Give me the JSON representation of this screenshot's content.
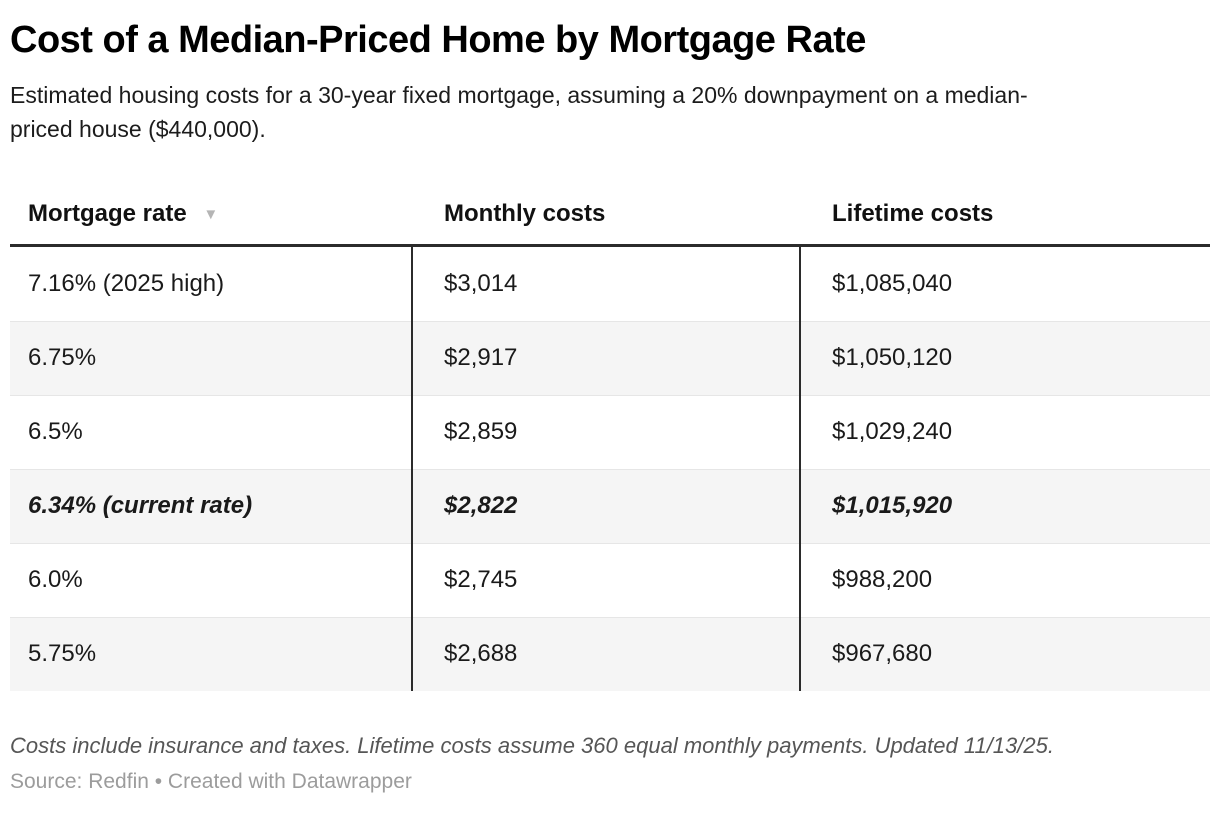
{
  "chart_data": {
    "type": "table",
    "title": "Cost of a Median-Priced Home by Mortgage Rate",
    "subtitle": "Estimated housing costs for a 30-year fixed mortgage, assuming a 20% downpayment on a median-priced house ($440,000).",
    "columns": [
      {
        "key": "rate",
        "label": "Mortgage rate",
        "sorted": "desc"
      },
      {
        "key": "monthly",
        "label": "Monthly costs",
        "sorted": "none"
      },
      {
        "key": "lifetime",
        "label": "Lifetime costs",
        "sorted": "none"
      }
    ],
    "rows": [
      {
        "rate": "7.16% (2025 high)",
        "monthly": "$3,014",
        "lifetime": "$1,085,040",
        "highlight": false
      },
      {
        "rate": "6.75%",
        "monthly": "$2,917",
        "lifetime": "$1,050,120",
        "highlight": false
      },
      {
        "rate": "6.5%",
        "monthly": "$2,859",
        "lifetime": "$1,029,240",
        "highlight": false
      },
      {
        "rate": "6.34% (current rate)",
        "monthly": "$2,822",
        "lifetime": "$1,015,920",
        "highlight": true
      },
      {
        "rate": "6.0%",
        "monthly": "$2,745",
        "lifetime": "$988,200",
        "highlight": false
      },
      {
        "rate": "5.75%",
        "monthly": "$2,688",
        "lifetime": "$967,680",
        "highlight": false
      }
    ],
    "note": "Costs include insurance and taxes. Lifetime costs assume 360 equal monthly payments. Updated 11/13/25.",
    "source": "Source: Redfin • Created with Datawrapper"
  },
  "icons": {
    "sort_desc": "▼"
  },
  "colors": {
    "title_text": "#000000",
    "body_text": "#1a1a1a",
    "header_rule": "#2b2b2b",
    "column_divider": "#2b2b2b",
    "row_alt_background": "#f5f5f5",
    "row_separator": "#e6e6e6",
    "sort_icon": "#b5b5b5",
    "note_text": "#565656",
    "source_text": "#9c9c9c"
  }
}
